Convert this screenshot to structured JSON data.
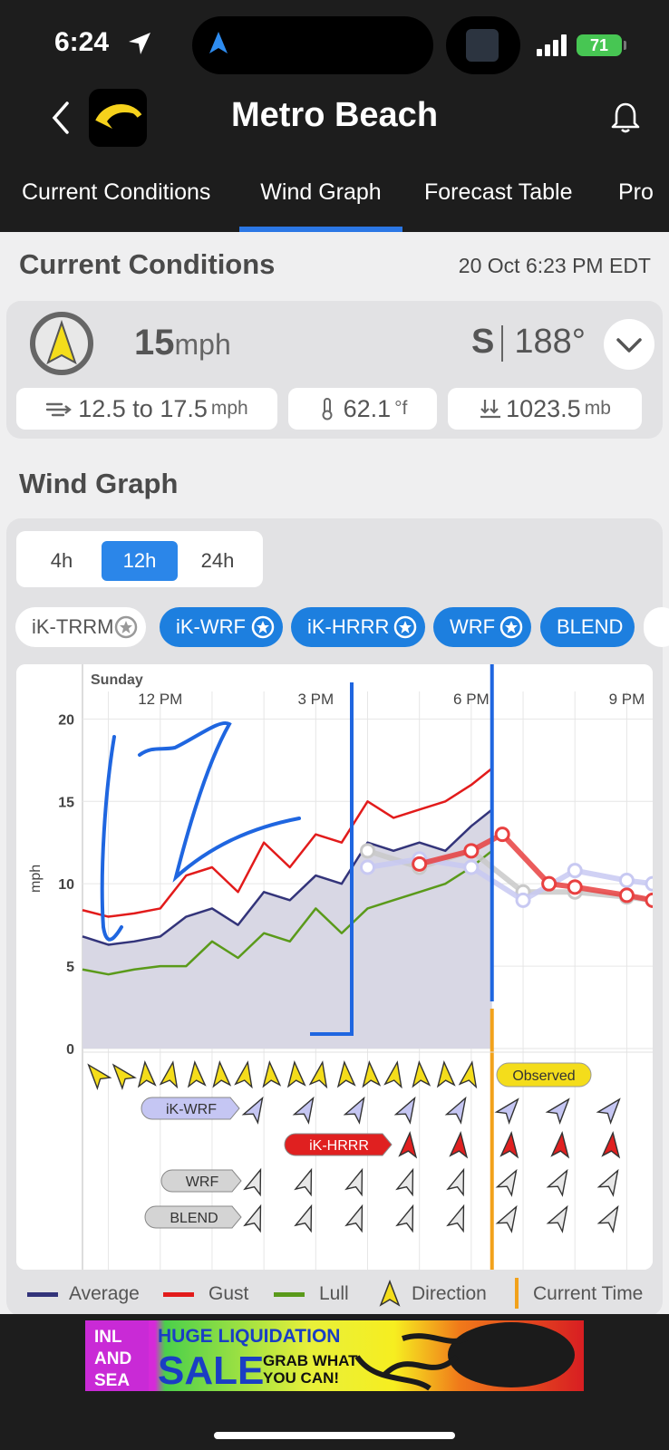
{
  "status_bar": {
    "time": "6:24",
    "battery": "71"
  },
  "header": {
    "title": "Metro Beach"
  },
  "tabs": [
    "Current Conditions",
    "Wind Graph",
    "Forecast Table",
    "Pro"
  ],
  "current_conditions": {
    "title": "Current Conditions",
    "timestamp": "20 Oct 6:23 PM EDT",
    "speed": "15",
    "speed_unit": "mph",
    "direction": "S",
    "degrees": "188°",
    "range": "12.5 to 17.5",
    "range_unit": "mph",
    "temp": "62.1",
    "temp_unit": "°f",
    "pressure": "1023.5",
    "pressure_unit": "mb"
  },
  "wind_graph": {
    "title": "Wind Graph",
    "ranges": [
      "4h",
      "12h",
      "24h"
    ],
    "selected_range": "12h",
    "models": [
      "iK-TRRM",
      "iK-WRF",
      "iK-HRRR",
      "WRF",
      "BLEND"
    ],
    "day": "Sunday",
    "x_ticks": [
      "12 PM",
      "3 PM",
      "6 PM",
      "9 PM"
    ],
    "y_ticks": [
      "20",
      "15",
      "10",
      "5",
      "0"
    ],
    "y_label": "mph",
    "observed_label": "Observed",
    "model_tags": [
      "iK-WRF",
      "iK-HRRR",
      "WRF",
      "BLEND"
    ]
  },
  "legend": {
    "average": "Average",
    "gust": "Gust",
    "lull": "Lull",
    "direction": "Direction",
    "current_time": "Current Time"
  },
  "ad": {
    "brand_lines": [
      "INL",
      "AND",
      "SEA"
    ],
    "headline": "HUGE LIQUIDATION",
    "sale": "SALE",
    "tagline_1": "GRAB WHAT",
    "tagline_2": "YOU CAN!"
  },
  "colors": {
    "accent_blue": "#2b77e5",
    "gust_red": "#e21b1b",
    "lull_green": "#5a9a1a",
    "average_navy": "#33347a",
    "current_time_orange": "#f2a21b",
    "direction_yellow": "#f4dd1b"
  },
  "chart_data": {
    "type": "line",
    "title": "",
    "xlabel": "",
    "ylabel": "mph",
    "ylim": [
      0,
      22
    ],
    "x_range_hours": [
      10.5,
      21.5
    ],
    "series": [
      {
        "name": "Gust",
        "x": [
          10.5,
          11,
          11.5,
          12,
          12.5,
          13,
          13.5,
          14,
          14.5,
          15,
          15.5,
          16,
          16.5,
          17,
          17.5,
          18,
          18.4
        ],
        "values": [
          8.4,
          8,
          8.2,
          8.5,
          10.5,
          11,
          9.5,
          12.5,
          11,
          13,
          12.5,
          15,
          14,
          14.5,
          15,
          16,
          17
        ]
      },
      {
        "name": "Average",
        "x": [
          10.5,
          11,
          11.5,
          12,
          12.5,
          13,
          13.5,
          14,
          14.5,
          15,
          15.5,
          16,
          16.5,
          17,
          17.5,
          18,
          18.4
        ],
        "values": [
          6.8,
          6.3,
          6.5,
          6.8,
          8,
          8.5,
          7.5,
          9.5,
          9,
          10.5,
          10,
          12.5,
          12,
          12.5,
          12,
          13.5,
          14.5
        ]
      },
      {
        "name": "Lull",
        "x": [
          10.5,
          11,
          11.5,
          12,
          12.5,
          13,
          13.5,
          14,
          14.5,
          15,
          15.5,
          16,
          16.5,
          17,
          17.5,
          18,
          18.4
        ],
        "values": [
          4.8,
          4.5,
          4.8,
          5,
          5,
          6.5,
          5.5,
          7,
          6.5,
          8.5,
          7,
          8.5,
          9,
          9.5,
          10,
          11,
          12
        ]
      }
    ]
  }
}
